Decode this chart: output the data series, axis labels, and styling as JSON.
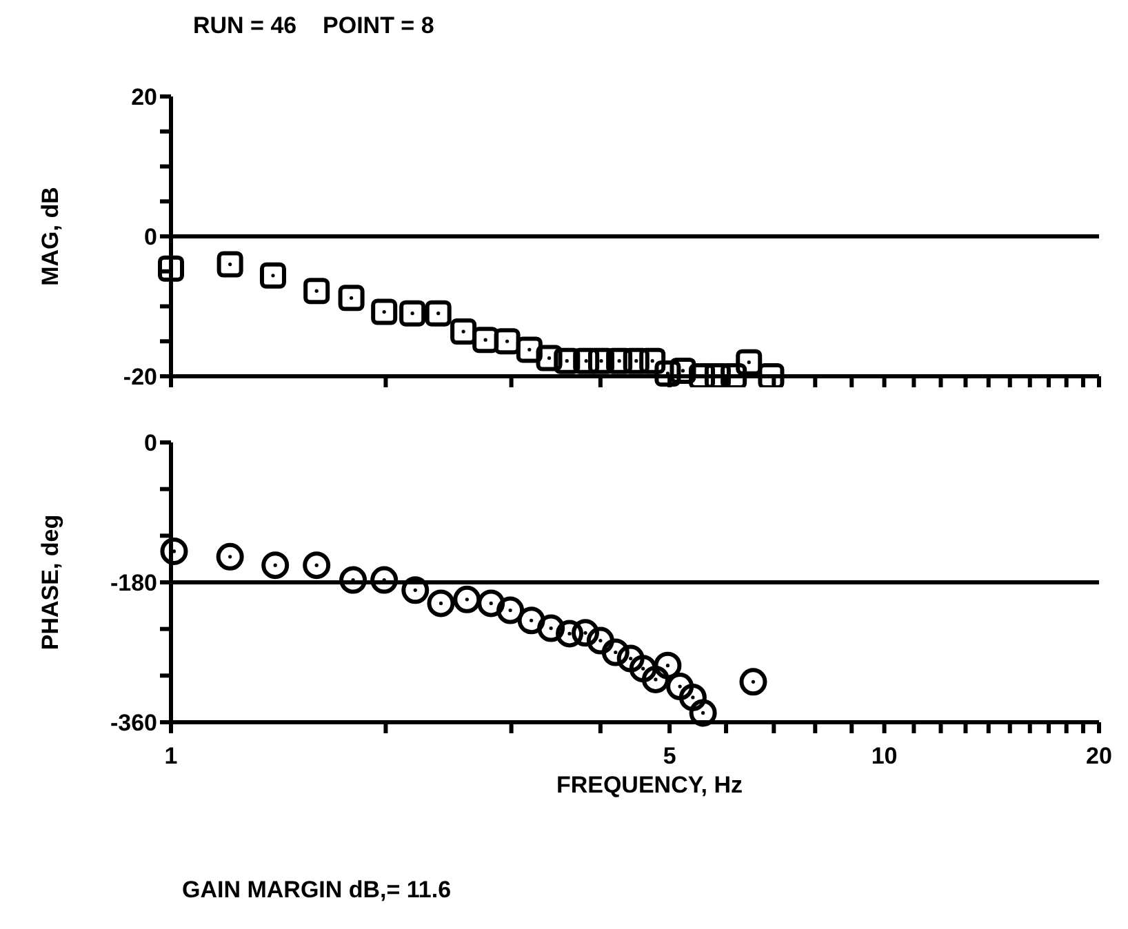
{
  "chart_data": [
    {
      "type": "scatter",
      "title": "RUN = 46    POINT = 8",
      "ylabel": "MAG, dB",
      "log": "x",
      "marker": "square",
      "grid": false,
      "legend": false,
      "tick_labels": "y",
      "xlim": [
        1,
        20
      ],
      "xticks": [
        {
          "value": 1,
          "label": null
        },
        {
          "value": 2,
          "label": null
        },
        {
          "value": 3,
          "label": null
        },
        {
          "value": 4,
          "label": null
        },
        {
          "value": 5,
          "label": null
        },
        {
          "value": 6,
          "label": null
        },
        {
          "value": 7,
          "label": null
        },
        {
          "value": 8,
          "label": null
        },
        {
          "value": 9,
          "label": null
        },
        {
          "value": 10,
          "label": null
        },
        {
          "value": 11,
          "label": null
        },
        {
          "value": 12,
          "label": null
        },
        {
          "value": 13,
          "label": null
        },
        {
          "value": 14,
          "label": null
        },
        {
          "value": 15,
          "label": null
        },
        {
          "value": 16,
          "label": null
        },
        {
          "value": 17,
          "label": null
        },
        {
          "value": 18,
          "label": null
        },
        {
          "value": 19,
          "label": null
        },
        {
          "value": 20,
          "label": null
        }
      ],
      "ylim": [
        -20,
        20
      ],
      "yticks": [
        20,
        {
          "value": 15,
          "label": null
        },
        {
          "value": 10,
          "label": null
        },
        {
          "value": 5,
          "label": null
        },
        0,
        {
          "value": -5,
          "label": null
        },
        {
          "value": -10,
          "label": null
        },
        {
          "value": -15,
          "label": null
        },
        -20
      ],
      "ref_lines": [
        {
          "axis": "y",
          "value": 0,
          "color": "#000000"
        }
      ],
      "series": [
        {
          "color": "#000000",
          "x": [
            1.0,
            1.21,
            1.39,
            1.6,
            1.79,
            1.99,
            2.18,
            2.37,
            2.57,
            2.76,
            2.96,
            3.18,
            3.39,
            3.59,
            3.82,
            4.01,
            4.25,
            4.49,
            4.73,
            4.97,
            5.22,
            5.55,
            5.84,
            6.15,
            6.46,
            6.94
          ],
          "values": [
            -4.6,
            -4,
            -5.6,
            -7.8,
            -8.8,
            -10.8,
            -11,
            -11,
            -13.6,
            -14.8,
            -15,
            -16.2,
            -17.4,
            -17.8,
            -17.8,
            -17.8,
            -17.8,
            -17.8,
            -17.8,
            -19.6,
            -19.2,
            -20,
            -20,
            -20,
            -18,
            -20
          ]
        }
      ]
    },
    {
      "type": "scatter",
      "ylabel": "PHASE, deg",
      "xlabel": "FREQUENCY, Hz",
      "log": "x",
      "marker": "circle",
      "grid": false,
      "legend": false,
      "annotations": [
        "GAIN MARGIN dB,= 11.6"
      ],
      "xlim": [
        1,
        20
      ],
      "xticks": [
        1,
        {
          "value": 2,
          "label": null
        },
        {
          "value": 3,
          "label": null
        },
        {
          "value": 4,
          "label": null
        },
        5,
        {
          "value": 6,
          "label": null
        },
        {
          "value": 7,
          "label": null
        },
        {
          "value": 8,
          "label": null
        },
        {
          "value": 9,
          "label": null
        },
        10,
        {
          "value": 11,
          "label": null
        },
        {
          "value": 12,
          "label": null
        },
        {
          "value": 13,
          "label": null
        },
        {
          "value": 14,
          "label": null
        },
        {
          "value": 15,
          "label": null
        },
        {
          "value": 16,
          "label": null
        },
        {
          "value": 17,
          "label": null
        },
        {
          "value": 18,
          "label": null
        },
        {
          "value": 19,
          "label": null
        },
        20
      ],
      "ylim": [
        -360,
        0
      ],
      "yticks": [
        0,
        {
          "value": -60,
          "label": null
        },
        {
          "value": -120,
          "label": null
        },
        -180,
        {
          "value": -240,
          "label": null
        },
        {
          "value": -300,
          "label": null
        },
        -360
      ],
      "ref_lines": [
        {
          "axis": "y",
          "value": -180,
          "color": "#000000"
        }
      ],
      "series": [
        {
          "color": "#000000",
          "x": [
            1.01,
            1.21,
            1.4,
            1.6,
            1.8,
            1.99,
            2.2,
            2.39,
            2.6,
            2.81,
            2.99,
            3.2,
            3.41,
            3.62,
            3.81,
            4.0,
            4.2,
            4.41,
            4.59,
            4.78,
            4.97,
            5.17,
            5.39,
            5.57,
            6.55
          ],
          "values": [
            -140,
            -147,
            -158,
            -158,
            -177,
            -177,
            -190,
            -207,
            -202,
            -207,
            -216,
            -229,
            -239,
            -246,
            -245,
            -255,
            -270,
            -278,
            -291,
            -305,
            -287,
            -314,
            -328,
            -348,
            -308
          ]
        }
      ]
    }
  ]
}
